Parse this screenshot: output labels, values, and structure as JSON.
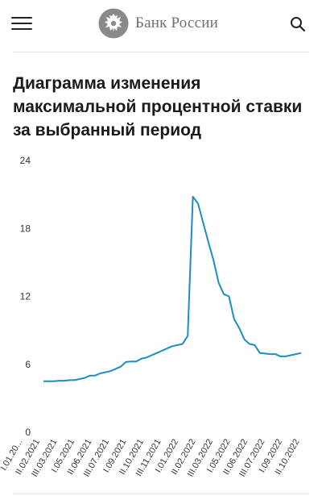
{
  "header": {
    "logo_text": "Банк России",
    "menu_icon": "hamburger-menu-icon",
    "search_icon": "search-icon",
    "emblem_icon": "double-headed-eagle-icon"
  },
  "page": {
    "title": "Диаграмма изменения максимальной процентной ставки за выбранный период"
  },
  "chart_data": {
    "type": "line",
    "title": "",
    "xlabel": "",
    "ylabel": "",
    "ylim": [
      0,
      24
    ],
    "yticks": [
      0,
      6,
      12,
      18,
      24
    ],
    "grid": false,
    "line_color": "#1f8dc0",
    "xtick_labels": [
      "I.01.20...",
      "II.02.2021",
      "III.03.2021",
      "I.05.2021",
      "II.06.2021",
      "III.07.2021",
      "I.09.2021",
      "II.10.2021",
      "III.11.2021",
      "I.01.2022",
      "II.02.2022",
      "III.03.2022",
      "I.05.2022",
      "II.06.2022",
      "III.07.2022",
      "I.09.2022",
      "II.10.2022"
    ],
    "series": [
      {
        "values": [
          4.5,
          4.5,
          4.5,
          4.55,
          4.55,
          4.6,
          4.6,
          4.7,
          4.8,
          5.0,
          5.0,
          5.2,
          5.3,
          5.4,
          5.6,
          5.8,
          6.2,
          6.25,
          6.25,
          6.5,
          6.6,
          6.8,
          7.0,
          7.2,
          7.4,
          7.6,
          7.7,
          7.8,
          8.5,
          20.8,
          20.2,
          18.5,
          16.8,
          15.2,
          13.2,
          12.2,
          12.0,
          10.0,
          9.2,
          8.2,
          7.8,
          7.7,
          7.0,
          6.95,
          6.9,
          6.9,
          6.7,
          6.7,
          6.8,
          6.9,
          7.0
        ]
      }
    ]
  }
}
